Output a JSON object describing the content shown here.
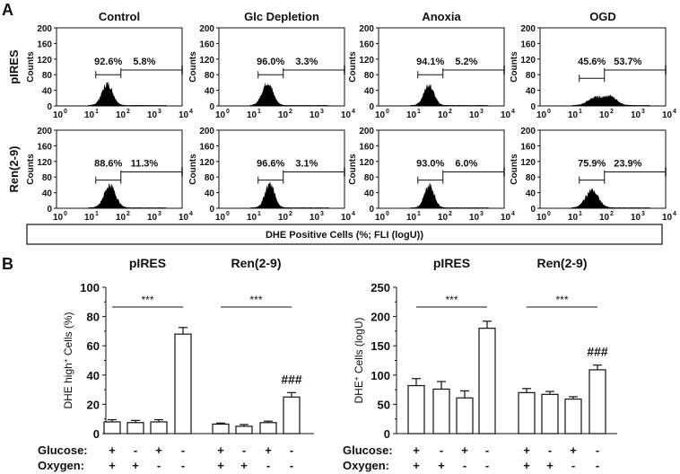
{
  "chart_data": [
    {
      "panel": "A",
      "type": "histogram",
      "columns": [
        "Control",
        "Glc Depletion",
        "Anoxia",
        "OGD"
      ],
      "rows": [
        "pIRES",
        "Ren(2-9)"
      ],
      "ylabel": "Counts",
      "yticks": [
        "0",
        "40",
        "80",
        "120",
        "160",
        "200"
      ],
      "ylim": [
        0,
        200
      ],
      "xticks": [
        "10",
        "10",
        "10",
        "10",
        "10"
      ],
      "xtick_exponents": [
        "0",
        "1",
        "2",
        "3",
        "4"
      ],
      "xlim_log10": [
        0,
        4
      ],
      "xlabel": "DHE Positive Cells (%; FLI (logU))",
      "gates": [
        [
          {
            "low": "92.6%",
            "high": "5.8%"
          },
          {
            "low": "96.0%",
            "high": "3.3%"
          },
          {
            "low": "94.1%",
            "high": "5.2%"
          },
          {
            "low": "45.6%",
            "high": "53.7%"
          }
        ],
        [
          {
            "low": "88.6%",
            "high": "11.3%"
          },
          {
            "low": "96.6%",
            "high": "3.1%"
          },
          {
            "low": "93.0%",
            "high": "6.0%"
          },
          {
            "low": "75.9%",
            "high": "23.9%"
          }
        ]
      ],
      "peaks": [
        [
          [
            {
              "mu": 1.62,
              "sd": 0.17,
              "h": 55
            }
          ],
          [
            {
              "mu": 1.55,
              "sd": 0.17,
              "h": 58
            }
          ],
          [
            {
              "mu": 1.6,
              "sd": 0.16,
              "h": 52
            }
          ],
          [
            {
              "mu": 1.75,
              "sd": 0.22,
              "h": 20
            },
            {
              "mu": 2.25,
              "sd": 0.2,
              "h": 22
            }
          ]
        ],
        [
          [
            {
              "mu": 1.7,
              "sd": 0.18,
              "h": 58
            }
          ],
          [
            {
              "mu": 1.62,
              "sd": 0.15,
              "h": 62
            }
          ],
          [
            {
              "mu": 1.62,
              "sd": 0.15,
              "h": 58
            }
          ],
          [
            {
              "mu": 1.65,
              "sd": 0.2,
              "h": 45
            }
          ]
        ]
      ]
    },
    {
      "panel": "B",
      "type": "bar",
      "groups": [
        "pIRES",
        "Ren(2-9)"
      ],
      "ylabel": "DHE high+ Cells (%)",
      "ylabel_main": "DHE high",
      "ylabel_sup": "+",
      "ylabel_rest": " Cells (%)",
      "ylim": [
        0,
        100
      ],
      "yticks": [
        "0",
        "20",
        "40",
        "60",
        "80",
        "100"
      ],
      "values": [
        8,
        7.5,
        8,
        68,
        6.5,
        5,
        7.5,
        25
      ],
      "errors": [
        1.5,
        1.5,
        1.5,
        4.5,
        0.7,
        1.2,
        1,
        3
      ],
      "significance": [
        "***",
        "***"
      ],
      "hash": "###"
    },
    {
      "panel": "B",
      "type": "bar",
      "groups": [
        "pIRES",
        "Ren(2-9)"
      ],
      "ylabel": "DHE+ Cells (logU)",
      "ylabel_main": "DHE",
      "ylabel_sup": "+",
      "ylabel_rest": " Cells (logU)",
      "ylim": [
        0,
        250
      ],
      "yticks": [
        "0",
        "50",
        "100",
        "150",
        "200",
        "250"
      ],
      "values": [
        82,
        76,
        61,
        180,
        70,
        67,
        59,
        109
      ],
      "errors": [
        12,
        13,
        12,
        12,
        7,
        5,
        4,
        8
      ],
      "significance": [
        "***",
        "***"
      ],
      "hash": "###"
    }
  ],
  "panel_labels": [
    "A",
    "B"
  ],
  "conditions": {
    "glucose_label": "Glucose:",
    "oxygen_label": "Oxygen:",
    "glucose": [
      "+",
      "-",
      "+",
      "-",
      "+",
      "-",
      "+",
      "-"
    ],
    "oxygen": [
      "+",
      "+",
      "-",
      "-",
      "+",
      "+",
      "-",
      "-"
    ]
  }
}
